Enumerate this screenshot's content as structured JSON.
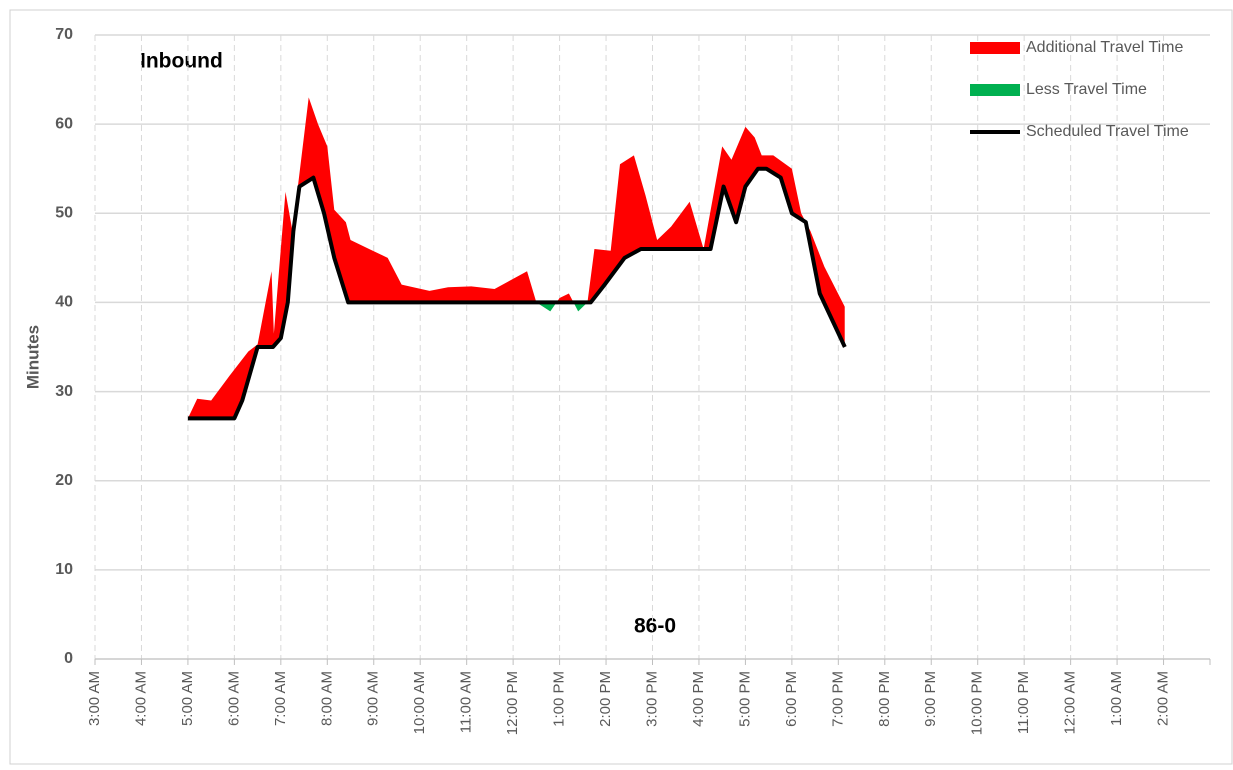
{
  "chart_data": {
    "type": "travel-time",
    "title": "Inbound",
    "annotation": "86-0",
    "ylabel": "Minutes",
    "ylim": [
      0,
      70
    ],
    "yticks": [
      0,
      10,
      20,
      30,
      40,
      50,
      60,
      70
    ],
    "xlim": [
      3,
      27
    ],
    "xticks": [
      {
        "value": 3,
        "label": "3:00 AM"
      },
      {
        "value": 4,
        "label": "4:00 AM"
      },
      {
        "value": 5,
        "label": "5:00 AM"
      },
      {
        "value": 6,
        "label": "6:00 AM"
      },
      {
        "value": 7,
        "label": "7:00 AM"
      },
      {
        "value": 8,
        "label": "8:00 AM"
      },
      {
        "value": 9,
        "label": "9:00 AM"
      },
      {
        "value": 10,
        "label": "10:00 AM"
      },
      {
        "value": 11,
        "label": "11:00 AM"
      },
      {
        "value": 12,
        "label": "12:00 PM"
      },
      {
        "value": 13,
        "label": "1:00 PM"
      },
      {
        "value": 14,
        "label": "2:00 PM"
      },
      {
        "value": 15,
        "label": "3:00 PM"
      },
      {
        "value": 16,
        "label": "4:00 PM"
      },
      {
        "value": 17,
        "label": "5:00 PM"
      },
      {
        "value": 18,
        "label": "6:00 PM"
      },
      {
        "value": 19,
        "label": "7:00 PM"
      },
      {
        "value": 20,
        "label": "8:00 PM"
      },
      {
        "value": 21,
        "label": "9:00 PM"
      },
      {
        "value": 22,
        "label": "10:00 PM"
      },
      {
        "value": 23,
        "label": "11:00 PM"
      },
      {
        "value": 24,
        "label": "12:00 AM"
      },
      {
        "value": 25,
        "label": "1:00 AM"
      },
      {
        "value": 26,
        "label": "2:00 AM"
      }
    ],
    "grid": true,
    "fills": [
      {
        "name": "Additional Travel Time",
        "color": "#ff0000"
      },
      {
        "name": "Less Travel Time",
        "color": "#00b050"
      }
    ],
    "series": [
      {
        "x": [
          5.0,
          5.2,
          5.5,
          5.9,
          6.3,
          6.5,
          6.8,
          6.85,
          7.1,
          7.25,
          7.6,
          7.8,
          8.0,
          8.15,
          8.4,
          8.5,
          8.9,
          9.3,
          9.6,
          10.2,
          10.6,
          11.1,
          11.6,
          12.3,
          12.5,
          12.8,
          13.0,
          13.2,
          13.4,
          13.6,
          13.75,
          14.1,
          14.3,
          14.6,
          14.85,
          15.1,
          15.4,
          15.8,
          16.1,
          16.5,
          16.7,
          17.0,
          17.2,
          17.35,
          17.6,
          18.0,
          18.2,
          18.4,
          18.7,
          19.14
        ],
        "values": [
          27,
          29.2,
          29,
          31.8,
          34.5,
          35.3,
          43.5,
          36.5,
          52.4,
          48,
          63,
          60,
          57.5,
          50.4,
          49,
          47,
          46,
          45,
          42,
          41.3,
          41.7,
          41.8,
          41.5,
          43.5,
          40,
          39,
          40.5,
          41,
          39,
          40,
          46,
          45.8,
          55.5,
          56.5,
          52,
          47,
          48.5,
          51.3,
          46,
          57.5,
          56,
          59.7,
          58.5,
          56.5,
          56.5,
          55,
          50,
          48,
          44,
          39.5
        ]
      },
      {
        "name": "Scheduled Travel Time",
        "color": "#000000",
        "x": [
          5.0,
          6.0,
          6.17,
          6.5,
          6.83,
          7.0,
          7.15,
          7.27,
          7.4,
          7.7,
          7.93,
          8.15,
          8.45,
          13.67,
          13.97,
          14.4,
          14.75,
          16.25,
          16.53,
          16.8,
          17.0,
          17.27,
          17.45,
          17.76,
          18.0,
          18.3,
          18.6,
          19.14
        ],
        "values": [
          27,
          27,
          29,
          35,
          35,
          36,
          40,
          48,
          53,
          54,
          50,
          45,
          40,
          40,
          42,
          45,
          46,
          46,
          53,
          49,
          53,
          55,
          55,
          54,
          50,
          49,
          41,
          35
        ]
      }
    ]
  }
}
